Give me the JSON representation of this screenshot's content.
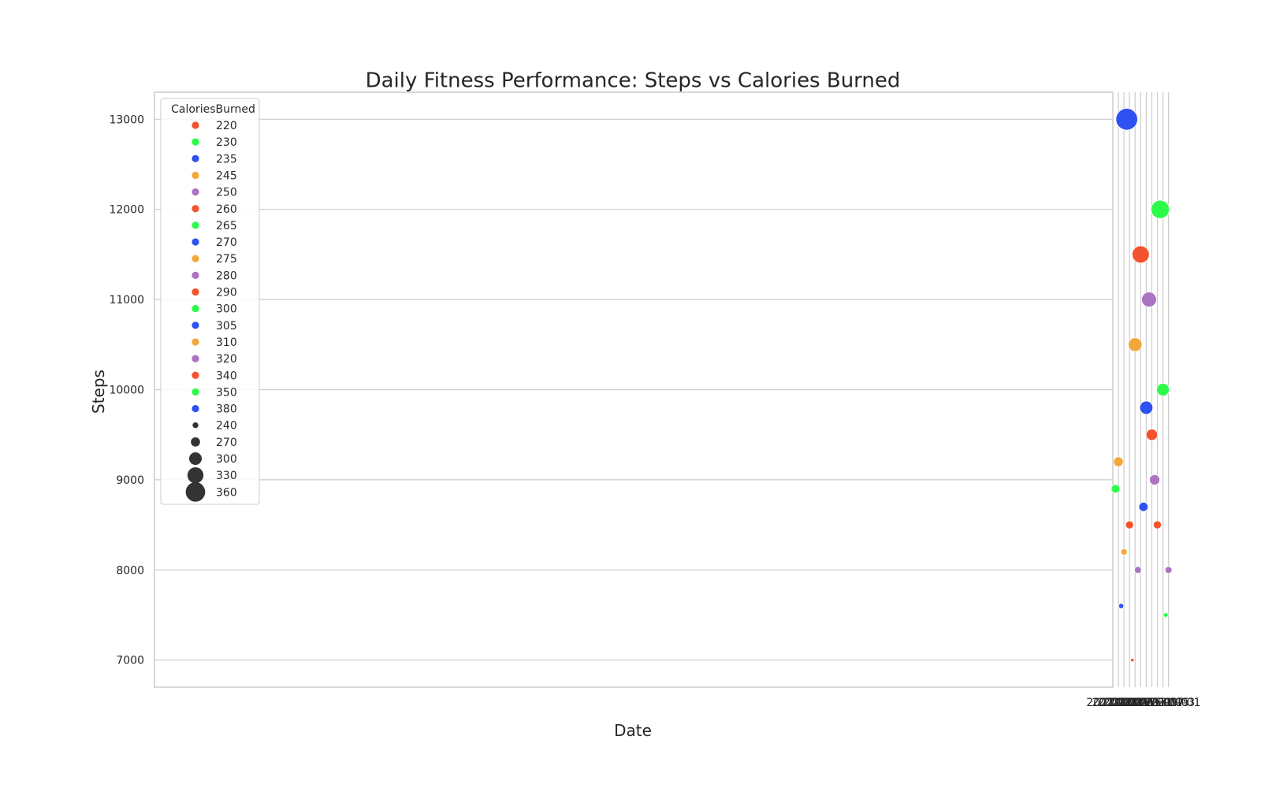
{
  "chart_data": {
    "type": "scatter",
    "title": "Daily Fitness Performance: Steps vs Calories Burned",
    "xlabel": "Date",
    "ylabel": "Steps",
    "x_ticks": [
      "2023-01-01",
      "2023-01-03",
      "2023-01-05",
      "2023-01-07",
      "2023-01-09",
      "2023-01-11",
      "2023-01-13",
      "2023-01-15",
      "2023-01-17",
      "2023-01-19"
    ],
    "y_ticks": [
      7000,
      8000,
      9000,
      10000,
      11000,
      12000,
      13000
    ],
    "xlim": [
      "2023-12-31T01:00",
      "2023-01-21T00:00"
    ],
    "ylim": [
      6700,
      13300
    ],
    "grid": true,
    "legend": {
      "title": "CaloriesBurned",
      "placement": "top-left",
      "hue_entries": [
        {
          "label": "220",
          "color": "#f4532f"
        },
        {
          "label": "230",
          "color": "#2cfb4a"
        },
        {
          "label": "235",
          "color": "#2f51f1"
        },
        {
          "label": "245",
          "color": "#f2a73b"
        },
        {
          "label": "250",
          "color": "#ab73c2"
        },
        {
          "label": "260",
          "color": "#f4532f"
        },
        {
          "label": "265",
          "color": "#2cfb4a"
        },
        {
          "label": "270",
          "color": "#2f51f1"
        },
        {
          "label": "275",
          "color": "#f2a73b"
        },
        {
          "label": "280",
          "color": "#ab73c2"
        },
        {
          "label": "290",
          "color": "#f4532f"
        },
        {
          "label": "300",
          "color": "#2cfb4a"
        },
        {
          "label": "305",
          "color": "#2f51f1"
        },
        {
          "label": "310",
          "color": "#f2a73b"
        },
        {
          "label": "320",
          "color": "#ab73c2"
        },
        {
          "label": "340",
          "color": "#f4532f"
        },
        {
          "label": "350",
          "color": "#2cfb4a"
        },
        {
          "label": "380",
          "color": "#2f51f1"
        }
      ],
      "size_entries": [
        {
          "label": "240",
          "value": 240
        },
        {
          "label": "270",
          "value": 270
        },
        {
          "label": "300",
          "value": 300
        },
        {
          "label": "330",
          "value": 330
        },
        {
          "label": "360",
          "value": 360
        }
      ],
      "size_color": "#333333"
    },
    "points": [
      {
        "date": "2023-01-01",
        "steps": 8000,
        "calories": 250,
        "color": "#ab73c2"
      },
      {
        "date": "2023-01-02",
        "steps": 7500,
        "calories": 230,
        "color": "#2cfb4a"
      },
      {
        "date": "2023-01-03",
        "steps": 10000,
        "calories": 300,
        "color": "#2cfb4a"
      },
      {
        "date": "2023-01-04",
        "steps": 12000,
        "calories": 350,
        "color": "#2cfb4a"
      },
      {
        "date": "2023-01-05",
        "steps": 8500,
        "calories": 260,
        "color": "#f4532f"
      },
      {
        "date": "2023-01-06",
        "steps": 9000,
        "calories": 280,
        "color": "#ab73c2"
      },
      {
        "date": "2023-01-07",
        "steps": 9500,
        "calories": 290,
        "color": "#f4532f"
      },
      {
        "date": "2023-01-08",
        "steps": 11000,
        "calories": 320,
        "color": "#ab73c2"
      },
      {
        "date": "2023-01-09",
        "steps": 9800,
        "calories": 305,
        "color": "#2f51f1"
      },
      {
        "date": "2023-01-10",
        "steps": 8700,
        "calories": 270,
        "color": "#2f51f1"
      },
      {
        "date": "2023-01-11",
        "steps": 11500,
        "calories": 340,
        "color": "#f4532f"
      },
      {
        "date": "2023-01-12",
        "steps": 8000,
        "calories": 250,
        "color": "#ab73c2"
      },
      {
        "date": "2023-01-13",
        "steps": 10500,
        "calories": 310,
        "color": "#f2a73b"
      },
      {
        "date": "2023-01-14",
        "steps": 7000,
        "calories": 220,
        "color": "#f4532f"
      },
      {
        "date": "2023-01-15",
        "steps": 8500,
        "calories": 260,
        "color": "#f4532f"
      },
      {
        "date": "2023-01-16",
        "steps": 13000,
        "calories": 380,
        "color": "#2f51f1"
      },
      {
        "date": "2023-01-17",
        "steps": 8200,
        "calories": 245,
        "color": "#f2a73b"
      },
      {
        "date": "2023-01-18",
        "steps": 7600,
        "calories": 235,
        "color": "#2f51f1"
      },
      {
        "date": "2023-01-19",
        "steps": 9200,
        "calories": 275,
        "color": "#f2a73b"
      },
      {
        "date": "2023-01-20",
        "steps": 8900,
        "calories": 265,
        "color": "#2cfb4a"
      }
    ]
  }
}
